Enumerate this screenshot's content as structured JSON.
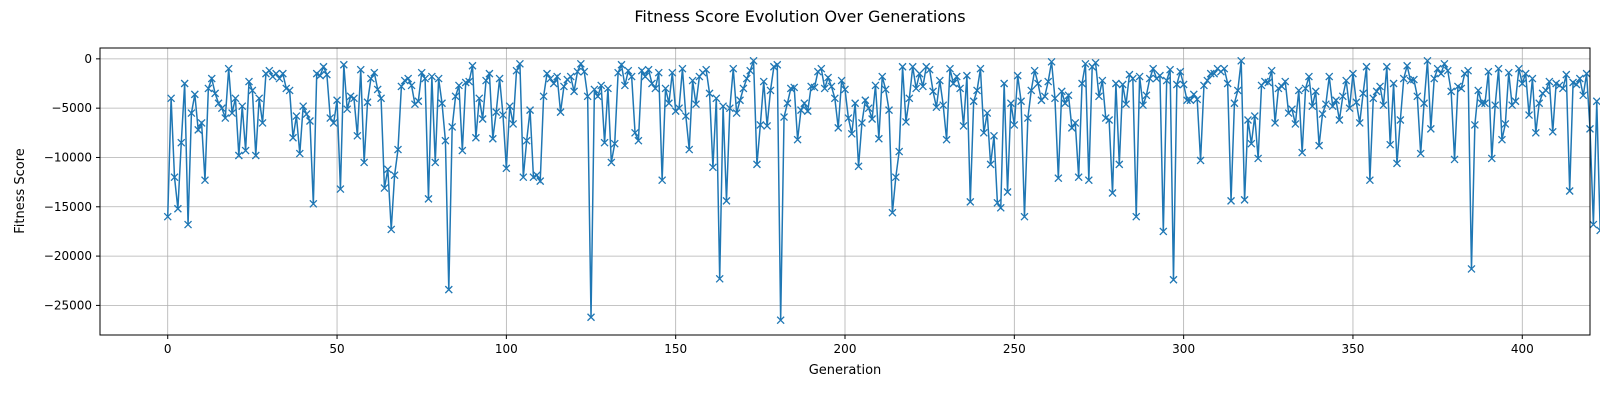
{
  "chart_data": {
    "type": "line",
    "title": "Fitness Score Evolution Over Generations",
    "xlabel": "Generation",
    "ylabel": "Fitness Score",
    "xlim": [
      -20,
      420
    ],
    "ylim": [
      -28000,
      1100
    ],
    "xticks": [
      0,
      50,
      100,
      150,
      200,
      250,
      300,
      350,
      400
    ],
    "yticks": [
      0,
      -5000,
      -10000,
      -15000,
      -20000,
      -25000
    ],
    "grid": true,
    "marker": "x",
    "color": "#1f77b4",
    "series": [
      {
        "values": [
          -16000,
          -4000,
          -12000,
          -15200,
          -8500,
          -2500,
          -16800,
          -5500,
          -3600,
          -7200,
          -6500,
          -12300,
          -3000,
          -2000,
          -3500,
          -4500,
          -5000,
          -6000,
          -1000,
          -5500,
          -4000,
          -9800,
          -4800,
          -9300,
          -2300,
          -3200,
          -9800,
          -4000,
          -6500,
          -1500,
          -1200,
          -1800,
          -1500,
          -2000,
          -1500,
          -3000,
          -3200,
          -8000,
          -5800,
          -9600,
          -4800,
          -5600,
          -6300,
          -14700,
          -1500,
          -1700,
          -800,
          -1600,
          -6000,
          -6500,
          -4200,
          -13200,
          -600,
          -5100,
          -3800,
          -4000,
          -7800,
          -1100,
          -10500,
          -4400,
          -2000,
          -1400,
          -3100,
          -4000,
          -13100,
          -11200,
          -17300,
          -11800,
          -9200,
          -2800,
          -2200,
          -2000,
          -2700,
          -4600,
          -4300,
          -1400,
          -2000,
          -14200,
          -1800,
          -10500,
          -2000,
          -4500,
          -8300,
          -23400,
          -6900,
          -3800,
          -2700,
          -9300,
          -2400,
          -2300,
          -700,
          -8000,
          -4000,
          -6100,
          -2200,
          -1500,
          -8100,
          -5400,
          -2000,
          -5700,
          -11100,
          -4800,
          -6600,
          -1200,
          -500,
          -12000,
          -8300,
          -5200,
          -12000,
          -11800,
          -12400,
          -3800,
          -1500,
          -2000,
          -2500,
          -1800,
          -5400,
          -2800,
          -2100,
          -1800,
          -3300,
          -1300,
          -500,
          -1300,
          -3800,
          -26200,
          -3100,
          -3800,
          -2700,
          -8500,
          -3000,
          -10500,
          -8600,
          -1400,
          -600,
          -2700,
          -1200,
          -1800,
          -7500,
          -8300,
          -1200,
          -1800,
          -1100,
          -2500,
          -3000,
          -1400,
          -12300,
          -3000,
          -4500,
          -1400,
          -5300,
          -5000,
          -1000,
          -5800,
          -9200,
          -2200,
          -4600,
          -1800,
          -1400,
          -1100,
          -3500,
          -11000,
          -4000,
          -22300,
          -4800,
          -14400,
          -5000,
          -1000,
          -5500,
          -4200,
          -3000,
          -2000,
          -1200,
          -200,
          -10700,
          -6700,
          -2300,
          -6800,
          -3200,
          -800,
          -600,
          -26500,
          -5900,
          -4500,
          -3000,
          -2900,
          -8200,
          -5200,
          -4500,
          -5300,
          -2800,
          -2900,
          -1300,
          -1000,
          -3000,
          -1900,
          -2800,
          -4000,
          -7000,
          -2200,
          -3100,
          -6000,
          -7600,
          -4500,
          -10900,
          -6500,
          -4200,
          -5000,
          -6100,
          -2700,
          -8100,
          -1800,
          -3100,
          -5200,
          -15600,
          -12000,
          -9400,
          -800,
          -6400,
          -4000,
          -800,
          -3000,
          -1500,
          -2800,
          -800,
          -1100,
          -3300,
          -4900,
          -2200,
          -4700,
          -8200,
          -1000,
          -2500,
          -1800,
          -3000,
          -6800,
          -1700,
          -14500,
          -4300,
          -3200,
          -1000,
          -7500,
          -5500,
          -10700,
          -7800,
          -14600,
          -15100,
          -2500,
          -13500,
          -4500,
          -6700,
          -1700,
          -4300,
          -16000,
          -6000,
          -3200,
          -1200,
          -2500,
          -4200,
          -3800,
          -2300,
          -300,
          -4000,
          -12100,
          -3300,
          -4500,
          -3700,
          -7000,
          -6500,
          -12000,
          -2500,
          -500,
          -12300,
          -800,
          -400,
          -3800,
          -2200,
          -6000,
          -6200,
          -13600,
          -2500,
          -10700,
          -2600,
          -4600,
          -1600,
          -2000,
          -16000,
          -1800,
          -4700,
          -3700,
          -2000,
          -1000,
          -2000,
          -1700,
          -17500,
          -2200,
          -1100,
          -22400,
          -2600,
          -1300,
          -2600,
          -4200,
          -4200,
          -3600,
          -4100,
          -10300,
          -2700,
          -2200,
          -1500,
          -1500,
          -1000,
          -1300,
          -1000,
          -2500,
          -14400,
          -4500,
          -3200,
          -200,
          -14300,
          -6200,
          -8600,
          -5800,
          -10100,
          -2700,
          -2300,
          -2400,
          -1200,
          -6500,
          -3000,
          -2800,
          -2300,
          -5500,
          -5100,
          -6600,
          -3200,
          -9500,
          -3000,
          -1800,
          -4800,
          -3300,
          -8800,
          -5600,
          -4600,
          -1800,
          -4800,
          -4200,
          -6200,
          -3800,
          -2200,
          -5000,
          -1500,
          -4400,
          -6500,
          -3500,
          -800,
          -12300,
          -4000,
          -3300,
          -2800,
          -4700,
          -800,
          -8700,
          -2500,
          -10600,
          -6200,
          -2000,
          -700,
          -2200,
          -2100,
          -3800,
          -9600,
          -4500,
          -200,
          -7100,
          -2000,
          -1000,
          -1500,
          -500,
          -1200,
          -3300,
          -10200,
          -2800,
          -3000,
          -1500,
          -1200,
          -21300,
          -6700,
          -3200,
          -4500,
          -4500,
          -1300,
          -10100,
          -4700,
          -1000,
          -8200,
          -6600,
          -1400,
          -4700,
          -4300,
          -1000,
          -2500,
          -1500,
          -5700,
          -2000,
          -7500,
          -4500,
          -3500,
          -3200,
          -2300,
          -7400,
          -2500,
          -2700,
          -3000,
          -1600,
          -13400,
          -2400,
          -2600,
          -2000,
          -3700,
          -1500,
          -7100,
          -16800,
          -4300,
          -17400
        ]
      }
    ]
  }
}
